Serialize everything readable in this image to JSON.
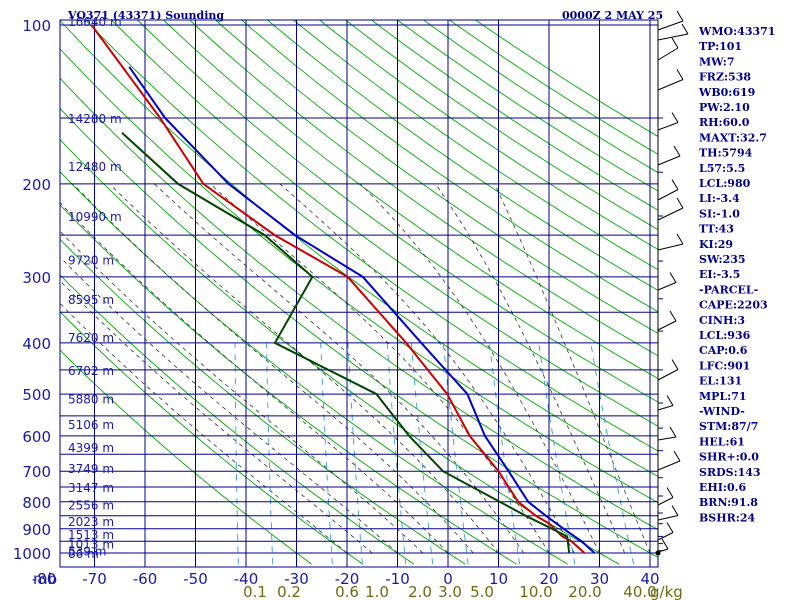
{
  "header": {
    "station_title": "VO371 (43371) Sounding",
    "time_label": "0000Z  2 MAY 25"
  },
  "colors": {
    "frame": "#00008b",
    "dry_adiabat": "#00aa00",
    "moist_adiabat": "#333333",
    "mixing_ratio": "#3399dd",
    "temperature": "#0000cc",
    "parcel": "#cc0000",
    "dewpoint": "#004400",
    "mixing_label": "#6b6b10"
  },
  "axes": {
    "x_unit_label": "mb",
    "pressure_ticks": [
      "100",
      "200",
      "300",
      "400",
      "500",
      "600",
      "700",
      "800",
      "900",
      "1000"
    ],
    "temp_ticks": [
      "-80",
      "-70",
      "-60",
      "-50",
      "-40",
      "-30",
      "-20",
      "-10",
      "0",
      "10",
      "20",
      "30",
      "40"
    ],
    "mixing_ticks": [
      "0.1",
      "0.2",
      "0.6",
      "1.0",
      "2.0",
      "3.0",
      "5.0",
      "10.0",
      "20.0",
      "40.0"
    ],
    "mixing_unit": "g/kg",
    "height_labels": [
      "16640 m",
      "14280 m",
      "12480 m",
      "10990 m",
      "9720 m",
      "8595 m",
      "7620 m",
      "6702 m",
      "5880 m",
      "5106 m",
      "4399 m",
      "3749 m",
      "3147 m",
      "2556 m",
      "2023 m",
      "1513 m",
      "1013 m",
      "539 m",
      "86 m"
    ]
  },
  "indices": [
    "WMO:43371",
    "TP:101",
    "MW:7",
    "FRZ:538",
    "WB0:619",
    "PW:2.10",
    "RH:60.0",
    "MAXT:32.7",
    "TH:5794",
    "L57:5.5",
    "LCL:980",
    "LI:-3.4",
    "SI:-1.0",
    "TT:43",
    "KI:29",
    "SW:235",
    "EI:-3.5",
    "-PARCEL-",
    "CAPE:2203",
    "CINH:3",
    "LCL:936",
    "CAP:0.6",
    "LFC:901",
    "EL:131",
    "MPL:71",
    "-WIND-",
    "STM:87/7",
    "HEL:61",
    "SHR+:0.0",
    "SRDS:143",
    "EHI:0.6",
    "BRN:91.8",
    "BSHR:24"
  ],
  "chart_data": {
    "type": "line",
    "title": "VO371 (43371) Sounding",
    "xlabel": "",
    "ylabel": "mb",
    "xlim": [
      -80,
      40
    ],
    "ylim": [
      1000,
      100
    ],
    "y_scale": "log",
    "series": [
      {
        "name": "",
        "role": "temperature",
        "points": [
          [
            29,
            1000
          ],
          [
            26,
            950
          ],
          [
            22,
            900
          ],
          [
            18,
            850
          ],
          [
            14,
            800
          ],
          [
            9,
            700
          ],
          [
            3,
            600
          ],
          [
            -2,
            500
          ],
          [
            -13,
            400
          ],
          [
            -27,
            300
          ],
          [
            -42,
            250
          ],
          [
            -57,
            200
          ],
          [
            -72,
            150
          ],
          [
            -81,
            120
          ]
        ]
      },
      {
        "name": "",
        "role": "parcel",
        "points": [
          [
            27,
            1000
          ],
          [
            24,
            950
          ],
          [
            22,
            930
          ],
          [
            19,
            880
          ],
          [
            16,
            850
          ],
          [
            12,
            800
          ],
          [
            7,
            700
          ],
          [
            0,
            600
          ],
          [
            -6,
            500
          ],
          [
            -16,
            400
          ],
          [
            -30,
            300
          ],
          [
            -46,
            250
          ],
          [
            -62,
            200
          ],
          [
            -73,
            150
          ],
          [
            -90,
            100
          ]
        ]
      },
      {
        "name": "",
        "role": "dewpoint",
        "points": [
          [
            24,
            1000
          ],
          [
            23,
            930
          ],
          [
            14,
            850
          ],
          [
            -4,
            700
          ],
          [
            -12,
            600
          ],
          [
            -20,
            500
          ],
          [
            -42,
            400
          ],
          [
            -37,
            300
          ],
          [
            -48,
            250
          ],
          [
            -67,
            200
          ],
          [
            -80,
            160
          ]
        ]
      }
    ]
  }
}
